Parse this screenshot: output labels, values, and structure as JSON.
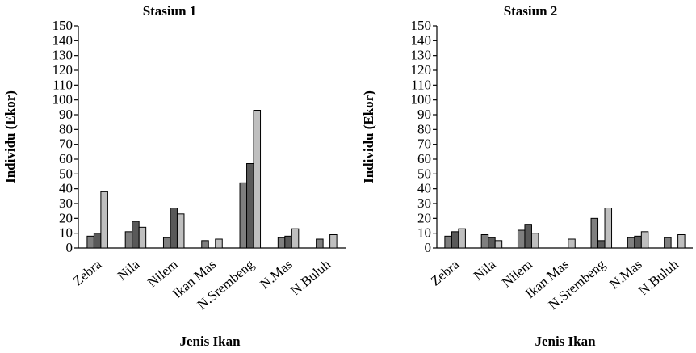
{
  "chart_data": [
    {
      "type": "bar",
      "title": "Stasiun 1",
      "xlabel": "Jenis Ikan",
      "ylabel": "Individu (Ekor)",
      "ylim": [
        0,
        150
      ],
      "ytick_step": 10,
      "categories": [
        "Zebra",
        "Nila",
        "Nilem",
        "Ikan Mas",
        "N.Srembeng",
        "N.Mas",
        "N.Buluh"
      ],
      "series": [
        {
          "color": "#7f7f7f",
          "values": [
            8,
            11,
            7,
            5,
            44,
            7,
            6
          ]
        },
        {
          "color": "#595959",
          "values": [
            10,
            18,
            27,
            0,
            57,
            8,
            0
          ]
        },
        {
          "color": "#bfbfbf",
          "values": [
            38,
            14,
            23,
            6,
            93,
            13,
            9
          ]
        }
      ]
    },
    {
      "type": "bar",
      "title": "Stasiun 2",
      "xlabel": "Jenis Ikan",
      "ylabel": "Individu (Ekor)",
      "ylim": [
        0,
        150
      ],
      "ytick_step": 10,
      "categories": [
        "Zebra",
        "Nila",
        "Nilem",
        "Ikan Mas",
        "N.Srembeng",
        "N.Mas",
        "N.Buluh"
      ],
      "series": [
        {
          "color": "#7f7f7f",
          "values": [
            8,
            9,
            12,
            0,
            20,
            7,
            7
          ]
        },
        {
          "color": "#595959",
          "values": [
            11,
            7,
            16,
            0,
            5,
            8,
            0
          ]
        },
        {
          "color": "#bfbfbf",
          "values": [
            13,
            5,
            10,
            6,
            27,
            11,
            9
          ]
        }
      ]
    }
  ]
}
